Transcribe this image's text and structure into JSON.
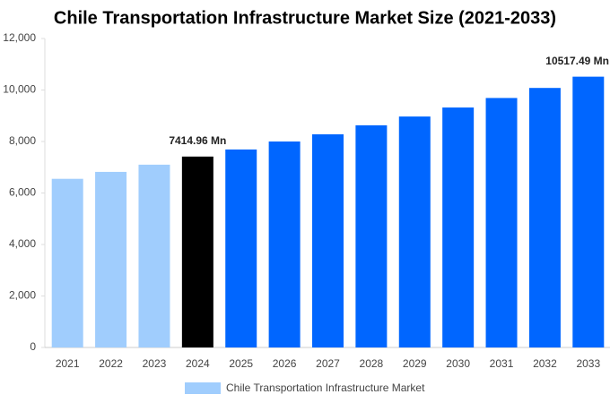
{
  "chart_data": {
    "type": "bar",
    "title": "Chile Transportation Infrastructure Market Size (2021-2033)",
    "categories": [
      "2021",
      "2022",
      "2023",
      "2024",
      "2025",
      "2026",
      "2027",
      "2028",
      "2029",
      "2030",
      "2031",
      "2032",
      "2033"
    ],
    "series": [
      {
        "name": "Chile Transportation Infrastructure Market",
        "color": "#a0cdfd",
        "values": [
          6550,
          6820,
          7100,
          7414.96,
          7690,
          8000,
          8280,
          8630,
          8970,
          9320,
          9690,
          10080,
          10517.49
        ],
        "value_labels": [
          null,
          null,
          null,
          "7414.96 Mn",
          null,
          null,
          null,
          null,
          null,
          null,
          null,
          null,
          "10517.49 Mn"
        ],
        "colors": [
          "#a0cdfd",
          "#a0cdfd",
          "#a0cdfd",
          "#000000",
          "#0066ff",
          "#0066ff",
          "#0066ff",
          "#0066ff",
          "#0066ff",
          "#0066ff",
          "#0066ff",
          "#0066ff",
          "#0066ff"
        ]
      }
    ],
    "ylim": [
      0,
      12000
    ],
    "yticks": [
      0,
      {
        "value": 2000,
        "label": "2,000"
      },
      {
        "value": 4000,
        "label": "4,000"
      },
      {
        "value": 6000,
        "label": "6,000"
      },
      {
        "value": 8000,
        "label": "8,000"
      },
      {
        "value": 10000,
        "label": "10,000"
      },
      {
        "value": 12000,
        "label": "12,000"
      }
    ],
    "grid": false
  }
}
